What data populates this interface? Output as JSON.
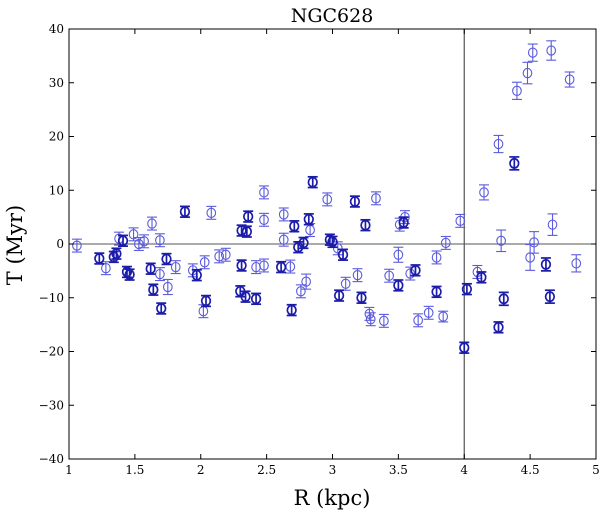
{
  "chart_data": {
    "type": "scatter",
    "title": "NGC628",
    "xlabel": "R (kpc)",
    "ylabel": "T (Myr)",
    "xlim": [
      1,
      5
    ],
    "ylim": [
      -40,
      40
    ],
    "xticks": [
      1,
      1.5,
      2,
      2.5,
      3,
      3.5,
      4,
      4.5,
      5
    ],
    "xtick_labels": [
      "1",
      "1.5",
      "2",
      "2.5",
      "3",
      "3.5",
      "4",
      "4.5",
      "5"
    ],
    "yticks": [
      -40,
      -30,
      -20,
      -10,
      0,
      10,
      20,
      30,
      40
    ],
    "ytick_labels": [
      "−40",
      "−30",
      "−20",
      "−10",
      "0",
      "10",
      "20",
      "30",
      "40"
    ],
    "hline_y": 0,
    "vline_x": 4,
    "marker": "open-circle",
    "grid": false,
    "colors": {
      "light": "#5b5bdc",
      "dark": "#1c1caa",
      "axis": "#000000",
      "reference_line": "#555555"
    },
    "series": [
      {
        "name": "light",
        "points": [
          {
            "x": 1.06,
            "y": -0.3,
            "err": 1.2
          },
          {
            "x": 1.28,
            "y": -4.5,
            "err": 1.2
          },
          {
            "x": 1.38,
            "y": 1.0,
            "err": 1.2
          },
          {
            "x": 1.49,
            "y": 1.8,
            "err": 1.2
          },
          {
            "x": 1.53,
            "y": 0.0,
            "err": 1.2
          },
          {
            "x": 1.57,
            "y": 0.5,
            "err": 1.2
          },
          {
            "x": 1.63,
            "y": 3.8,
            "err": 1.2
          },
          {
            "x": 1.69,
            "y": 0.7,
            "err": 1.2
          },
          {
            "x": 1.69,
            "y": -5.6,
            "err": 1.2
          },
          {
            "x": 1.75,
            "y": -8.0,
            "err": 1.4
          },
          {
            "x": 1.81,
            "y": -4.3,
            "err": 1.2
          },
          {
            "x": 1.94,
            "y": -4.9,
            "err": 1.2
          },
          {
            "x": 2.02,
            "y": -12.5,
            "err": 1.2
          },
          {
            "x": 2.03,
            "y": -3.4,
            "err": 1.2
          },
          {
            "x": 2.08,
            "y": 5.8,
            "err": 1.2
          },
          {
            "x": 2.14,
            "y": -2.3,
            "err": 1.2
          },
          {
            "x": 2.19,
            "y": -2.0,
            "err": 1.2
          },
          {
            "x": 2.42,
            "y": -4.3,
            "err": 1.2
          },
          {
            "x": 2.48,
            "y": -4.0,
            "err": 1.2
          },
          {
            "x": 2.48,
            "y": 4.5,
            "err": 1.2
          },
          {
            "x": 2.48,
            "y": 9.6,
            "err": 1.2
          },
          {
            "x": 2.63,
            "y": 0.8,
            "err": 1.2
          },
          {
            "x": 2.63,
            "y": 5.5,
            "err": 1.2
          },
          {
            "x": 2.68,
            "y": -4.2,
            "err": 1.2
          },
          {
            "x": 2.76,
            "y": -8.8,
            "err": 1.2
          },
          {
            "x": 2.8,
            "y": -7.0,
            "err": 1.4
          },
          {
            "x": 2.83,
            "y": 2.6,
            "err": 1.2
          },
          {
            "x": 2.96,
            "y": 8.3,
            "err": 1.2
          },
          {
            "x": 3.04,
            "y": -0.8,
            "err": 1.2
          },
          {
            "x": 3.1,
            "y": -7.4,
            "err": 1.2
          },
          {
            "x": 3.19,
            "y": -5.8,
            "err": 1.2
          },
          {
            "x": 3.28,
            "y": -13.0,
            "err": 1.2
          },
          {
            "x": 3.29,
            "y": -14.0,
            "err": 1.2
          },
          {
            "x": 3.33,
            "y": 8.5,
            "err": 1.2
          },
          {
            "x": 3.39,
            "y": -14.3,
            "err": 1.2
          },
          {
            "x": 3.43,
            "y": -5.9,
            "err": 1.2
          },
          {
            "x": 3.5,
            "y": -2.0,
            "err": 1.4
          },
          {
            "x": 3.51,
            "y": 3.6,
            "err": 1.2
          },
          {
            "x": 3.55,
            "y": 5.0,
            "err": 1.2
          },
          {
            "x": 3.59,
            "y": -5.5,
            "err": 1.2
          },
          {
            "x": 3.65,
            "y": -14.2,
            "err": 1.2
          },
          {
            "x": 3.73,
            "y": -12.8,
            "err": 1.2
          },
          {
            "x": 3.79,
            "y": -2.5,
            "err": 1.2
          },
          {
            "x": 3.84,
            "y": -13.5,
            "err": 1.0
          },
          {
            "x": 3.86,
            "y": 0.2,
            "err": 1.2
          },
          {
            "x": 3.97,
            "y": 4.3,
            "err": 1.2
          },
          {
            "x": 4.1,
            "y": -5.2,
            "err": 1.2
          },
          {
            "x": 4.15,
            "y": 9.6,
            "err": 1.4
          },
          {
            "x": 4.26,
            "y": 18.6,
            "err": 1.6
          },
          {
            "x": 4.28,
            "y": 0.6,
            "err": 2.0
          },
          {
            "x": 4.4,
            "y": 28.5,
            "err": 1.6
          },
          {
            "x": 4.48,
            "y": 31.8,
            "err": 2.0
          },
          {
            "x": 4.5,
            "y": -2.5,
            "err": 2.4
          },
          {
            "x": 4.52,
            "y": 35.6,
            "err": 1.6
          },
          {
            "x": 4.53,
            "y": 0.3,
            "err": 2.0
          },
          {
            "x": 4.66,
            "y": 36.0,
            "err": 1.8
          },
          {
            "x": 4.67,
            "y": 3.6,
            "err": 2.0
          },
          {
            "x": 4.8,
            "y": 30.6,
            "err": 1.4
          },
          {
            "x": 4.85,
            "y": -3.6,
            "err": 1.6
          }
        ]
      },
      {
        "name": "dark",
        "points": [
          {
            "x": 1.23,
            "y": -2.7,
            "err": 1.0
          },
          {
            "x": 1.34,
            "y": -2.4,
            "err": 1.0
          },
          {
            "x": 1.36,
            "y": -1.8,
            "err": 1.0
          },
          {
            "x": 1.41,
            "y": 0.6,
            "err": 1.0
          },
          {
            "x": 1.44,
            "y": -5.2,
            "err": 1.0
          },
          {
            "x": 1.46,
            "y": -5.7,
            "err": 1.0
          },
          {
            "x": 1.62,
            "y": -4.6,
            "err": 1.0
          },
          {
            "x": 1.64,
            "y": -8.5,
            "err": 1.0
          },
          {
            "x": 1.7,
            "y": -12.0,
            "err": 1.0
          },
          {
            "x": 1.74,
            "y": -2.8,
            "err": 1.0
          },
          {
            "x": 1.88,
            "y": 6.0,
            "err": 1.0
          },
          {
            "x": 1.97,
            "y": -5.8,
            "err": 1.0
          },
          {
            "x": 2.04,
            "y": -10.6,
            "err": 1.0
          },
          {
            "x": 2.3,
            "y": -8.8,
            "err": 1.0
          },
          {
            "x": 2.31,
            "y": -4.0,
            "err": 1.0
          },
          {
            "x": 2.31,
            "y": 2.5,
            "err": 1.0
          },
          {
            "x": 2.34,
            "y": -9.8,
            "err": 1.0
          },
          {
            "x": 2.35,
            "y": 2.3,
            "err": 1.0
          },
          {
            "x": 2.36,
            "y": 5.1,
            "err": 1.0
          },
          {
            "x": 2.42,
            "y": -10.2,
            "err": 1.0
          },
          {
            "x": 2.61,
            "y": -4.3,
            "err": 1.0
          },
          {
            "x": 2.69,
            "y": -12.3,
            "err": 1.0
          },
          {
            "x": 2.71,
            "y": 3.3,
            "err": 1.0
          },
          {
            "x": 2.74,
            "y": -0.6,
            "err": 1.0
          },
          {
            "x": 2.78,
            "y": 0.2,
            "err": 1.0
          },
          {
            "x": 2.82,
            "y": 4.6,
            "err": 1.0
          },
          {
            "x": 2.85,
            "y": 11.5,
            "err": 1.0
          },
          {
            "x": 2.98,
            "y": 0.8,
            "err": 1.0
          },
          {
            "x": 3.0,
            "y": 0.4,
            "err": 1.0
          },
          {
            "x": 3.05,
            "y": -9.6,
            "err": 1.0
          },
          {
            "x": 3.08,
            "y": -2.0,
            "err": 1.0
          },
          {
            "x": 3.17,
            "y": 7.9,
            "err": 1.0
          },
          {
            "x": 3.22,
            "y": -10.0,
            "err": 1.0
          },
          {
            "x": 3.25,
            "y": 3.5,
            "err": 1.0
          },
          {
            "x": 3.54,
            "y": 4.0,
            "err": 1.0
          },
          {
            "x": 3.5,
            "y": -7.7,
            "err": 1.0
          },
          {
            "x": 3.63,
            "y": -4.9,
            "err": 1.0
          },
          {
            "x": 3.79,
            "y": -8.9,
            "err": 1.0
          },
          {
            "x": 4.0,
            "y": -19.3,
            "err": 1.0
          },
          {
            "x": 4.02,
            "y": -8.4,
            "err": 1.0
          },
          {
            "x": 4.13,
            "y": -6.2,
            "err": 1.0
          },
          {
            "x": 4.26,
            "y": -15.5,
            "err": 1.0
          },
          {
            "x": 4.3,
            "y": -10.2,
            "err": 1.2
          },
          {
            "x": 4.38,
            "y": 15.0,
            "err": 1.2
          },
          {
            "x": 4.62,
            "y": -3.8,
            "err": 1.2
          },
          {
            "x": 4.65,
            "y": -9.8,
            "err": 1.2
          }
        ]
      }
    ]
  }
}
